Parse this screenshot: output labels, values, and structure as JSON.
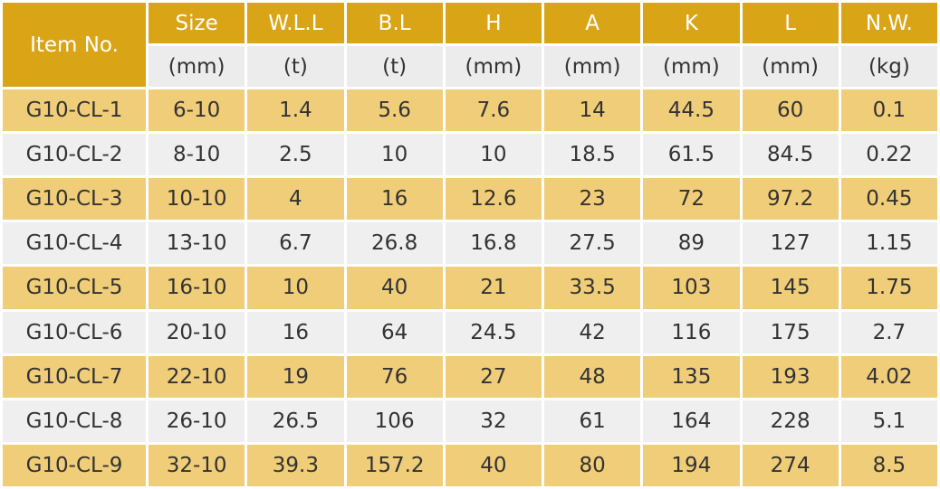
{
  "table": {
    "item_header": "Item No.",
    "columns": [
      {
        "name": "Size",
        "unit": "(mm)"
      },
      {
        "name": "W.L.L",
        "unit": "(t)"
      },
      {
        "name": "B.L",
        "unit": "(t)"
      },
      {
        "name": "H",
        "unit": "(mm)"
      },
      {
        "name": "A",
        "unit": "(mm)"
      },
      {
        "name": "K",
        "unit": "(mm)"
      },
      {
        "name": "L",
        "unit": "(mm)"
      },
      {
        "name": "N.W.",
        "unit": "(kg)"
      }
    ],
    "rows": [
      [
        "G10-CL-1",
        "6-10",
        1.4,
        5.6,
        7.6,
        14,
        44.5,
        60,
        0.1
      ],
      [
        "G10-CL-2",
        "8-10",
        2.5,
        10,
        10,
        18.5,
        61.5,
        84.5,
        0.22
      ],
      [
        "G10-CL-3",
        "10-10",
        4,
        16,
        12.6,
        23,
        72,
        97.2,
        0.45
      ],
      [
        "G10-CL-4",
        "13-10",
        6.7,
        26.8,
        16.8,
        27.5,
        89,
        127,
        1.15
      ],
      [
        "G10-CL-5",
        "16-10",
        10,
        40,
        21,
        33.5,
        103,
        145,
        1.75
      ],
      [
        "G10-CL-6",
        "20-10",
        16,
        64,
        24.5,
        42,
        116,
        175,
        2.7
      ],
      [
        "G10-CL-7",
        "22-10",
        19,
        76,
        27,
        48,
        135,
        193,
        4.02
      ],
      [
        "G10-CL-8",
        "26-10",
        26.5,
        106,
        32,
        61,
        164,
        228,
        5.1
      ],
      [
        "G10-CL-9",
        "32-10",
        39.3,
        157.2,
        40,
        80,
        194,
        274,
        8.5
      ]
    ]
  }
}
